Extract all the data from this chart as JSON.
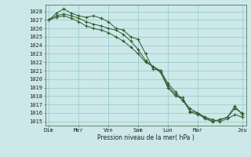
{
  "xlabel": "Pression niveau de la mer( hPa )",
  "bg_color": "#cce8e8",
  "grid_color": "#99cccc",
  "line_color": "#2d5a2d",
  "line1": [
    1027.0,
    1027.8,
    1028.3,
    1027.8,
    1027.5,
    1027.3,
    1027.5,
    1027.2,
    1026.8,
    1026.0,
    1025.8,
    1025.0,
    1024.7,
    1023.0,
    1021.2,
    1021.0,
    1019.5,
    1018.5,
    1017.5,
    1016.5,
    1016.0,
    1015.5,
    1015.0,
    1015.2,
    1015.5,
    1016.5,
    1016.0
  ],
  "line2": [
    1027.0,
    1027.5,
    1027.7,
    1027.5,
    1027.2,
    1026.8,
    1026.5,
    1026.3,
    1026.0,
    1025.8,
    1025.3,
    1024.5,
    1023.5,
    1022.2,
    1021.5,
    1021.0,
    1019.2,
    1018.2,
    1017.5,
    1016.2,
    1016.0,
    1015.3,
    1015.0,
    1015.2,
    1015.5,
    1016.8,
    1015.8
  ],
  "line3": [
    1027.0,
    1027.3,
    1027.5,
    1027.2,
    1026.8,
    1026.3,
    1026.0,
    1025.8,
    1025.5,
    1025.0,
    1024.5,
    1023.8,
    1023.0,
    1022.0,
    1021.5,
    1020.8,
    1019.0,
    1018.0,
    1017.8,
    1016.1,
    1015.8,
    1015.5,
    1015.2,
    1015.0,
    1015.3,
    1015.8,
    1015.5
  ],
  "n_points": 27,
  "ylim_min": 1014.5,
  "ylim_max": 1028.8,
  "yticks": [
    1015,
    1016,
    1017,
    1018,
    1019,
    1020,
    1021,
    1022,
    1023,
    1024,
    1025,
    1026,
    1027,
    1028
  ],
  "xtick_pos": [
    0,
    4,
    8,
    12,
    16,
    20,
    26
  ],
  "xtick_lab": [
    "Dim",
    "Mer",
    "Ven",
    "Sam",
    "Lun",
    "Mar",
    "Jeu"
  ],
  "xmin": -0.5,
  "xmax": 26.5
}
